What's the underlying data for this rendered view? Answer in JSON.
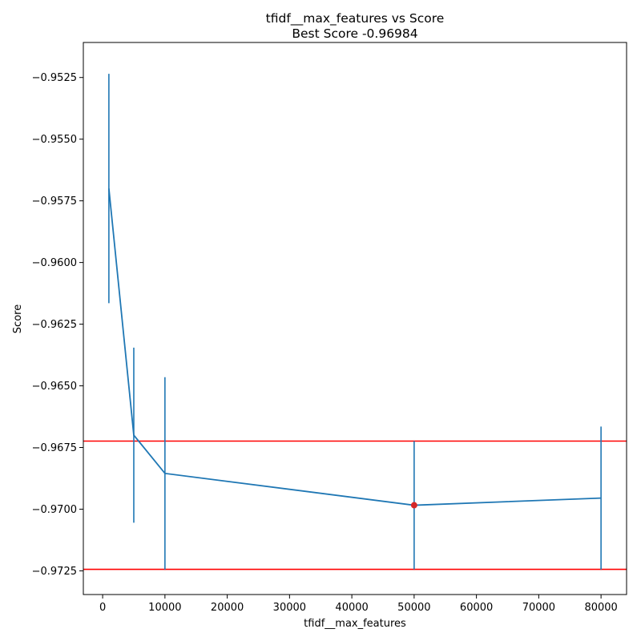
{
  "chart_data": {
    "type": "line",
    "title": "tfidf__max_features vs Score",
    "subtitle": "Best Score -0.96984",
    "xlabel": "tfidf__max_features",
    "ylabel": "Score",
    "x": [
      1000,
      5000,
      10000,
      50000,
      80000
    ],
    "series": [
      {
        "values": [
          -0.957,
          -0.967,
          -0.96855,
          -0.96984,
          -0.96955
        ],
        "errors": [
          0.00465,
          0.00355,
          0.0039,
          0.0026,
          0.0029
        ],
        "color": "#1f77b4"
      }
    ],
    "best_point": {
      "x": 50000,
      "y": -0.96984,
      "color": "#d62728"
    },
    "hlines": [
      {
        "y": -0.96724,
        "color": "#ff0000"
      },
      {
        "y": -0.97244,
        "color": "#ff0000"
      }
    ],
    "xlim": [
      -3100,
      84100
    ],
    "ylim": [
      -0.97346,
      -0.95108
    ],
    "xticks": [
      0,
      10000,
      20000,
      30000,
      40000,
      50000,
      60000,
      70000,
      80000
    ],
    "xtick_labels": [
      "0",
      "10000",
      "20000",
      "30000",
      "40000",
      "50000",
      "60000",
      "70000",
      "80000"
    ],
    "yticks": [
      -0.9525,
      -0.955,
      -0.9575,
      -0.96,
      -0.9625,
      -0.965,
      -0.9675,
      -0.97,
      -0.9725
    ],
    "ytick_labels": [
      "−0.9525",
      "−0.9550",
      "−0.9575",
      "−0.9600",
      "−0.9625",
      "−0.9650",
      "−0.9675",
      "−0.9700",
      "−0.9725"
    ],
    "grid": false,
    "legend": "none"
  }
}
